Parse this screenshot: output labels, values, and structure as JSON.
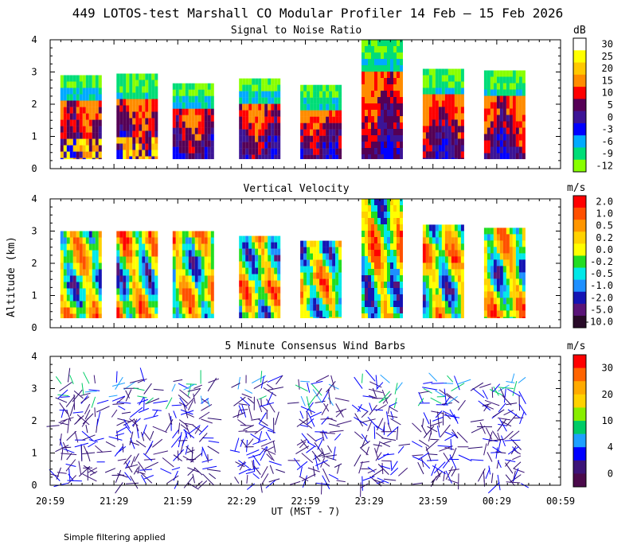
{
  "chart_data": {
    "type": "heatmap",
    "title": "449 LOTOS-test Marshall CO Modular Profiler 14 Feb – 15 Feb 2026",
    "ylabel": "Altitude (km)",
    "xlabel": "UT  (MST - 7)",
    "x_ticks": [
      "20:59",
      "21:29",
      "21:59",
      "22:29",
      "22:59",
      "23:29",
      "23:59",
      "00:29",
      "00:59"
    ],
    "y_ticks": [
      "0",
      "1",
      "2",
      "3",
      "4"
    ],
    "ylim": [
      0,
      4
    ],
    "footnote": "Simple filtering applied",
    "panels": [
      {
        "title": "Signal to Noise Ratio",
        "type": "heatmap",
        "unit": "dB",
        "colorbar": {
          "labels": [
            "30",
            "25",
            "20",
            "15",
            "10",
            "5",
            "0",
            "-3",
            "-6",
            "-9",
            "-12"
          ],
          "colors": [
            "#ffffff",
            "#ffff00",
            "#ffc800",
            "#ff8c00",
            "#ff0000",
            "#550055",
            "#3c1496",
            "#0000ff",
            "#00aaff",
            "#00dd77",
            "#88ff00"
          ]
        },
        "segments": [
          {
            "start": 0.02,
            "end": 0.1,
            "top_km": 2.9
          },
          {
            "start": 0.13,
            "end": 0.21,
            "top_km": 2.95
          },
          {
            "start": 0.24,
            "end": 0.32,
            "top_km": 2.65
          },
          {
            "start": 0.37,
            "end": 0.45,
            "top_km": 2.8
          },
          {
            "start": 0.49,
            "end": 0.57,
            "top_km": 2.6
          },
          {
            "start": 0.61,
            "end": 0.69,
            "top_km": 4.0
          },
          {
            "start": 0.73,
            "end": 0.81,
            "top_km": 3.1
          },
          {
            "start": 0.85,
            "end": 0.93,
            "top_km": 3.05
          }
        ]
      },
      {
        "title": "Vertical Velocity",
        "type": "heatmap",
        "unit": "m/s",
        "colorbar": {
          "labels": [
            "2.0",
            "1.0",
            "0.5",
            "0.2",
            "0.0",
            "-0.2",
            "-0.5",
            "-1.0",
            "-2.0",
            "-5.0",
            "-10.0"
          ],
          "colors": [
            "#ff0000",
            "#ff5000",
            "#ff9600",
            "#ffd200",
            "#ffff00",
            "#22dd22",
            "#00e8e8",
            "#1e90ff",
            "#1414b4",
            "#5a1478",
            "#280a28"
          ]
        },
        "segments": [
          {
            "start": 0.02,
            "end": 0.1,
            "top_km": 3.0
          },
          {
            "start": 0.13,
            "end": 0.21,
            "top_km": 3.0
          },
          {
            "start": 0.24,
            "end": 0.32,
            "top_km": 3.0
          },
          {
            "start": 0.37,
            "end": 0.45,
            "top_km": 2.85
          },
          {
            "start": 0.49,
            "end": 0.57,
            "top_km": 2.7
          },
          {
            "start": 0.61,
            "end": 0.69,
            "top_km": 4.0
          },
          {
            "start": 0.73,
            "end": 0.81,
            "top_km": 3.2
          },
          {
            "start": 0.85,
            "end": 0.93,
            "top_km": 3.1
          }
        ]
      },
      {
        "title": "5 Minute Consensus Wind Barbs",
        "type": "wind_barbs",
        "unit": "m/s",
        "colorbar": {
          "labels": [
            "30",
            "20",
            "10",
            "4",
            "0"
          ],
          "colors": [
            "#ff0000",
            "#ff6400",
            "#ffaa00",
            "#ffd200",
            "#88ee00",
            "#00cc66",
            "#1ea0ff",
            "#0000ff",
            "#3c1478",
            "#4b0a4b"
          ]
        }
      }
    ]
  }
}
